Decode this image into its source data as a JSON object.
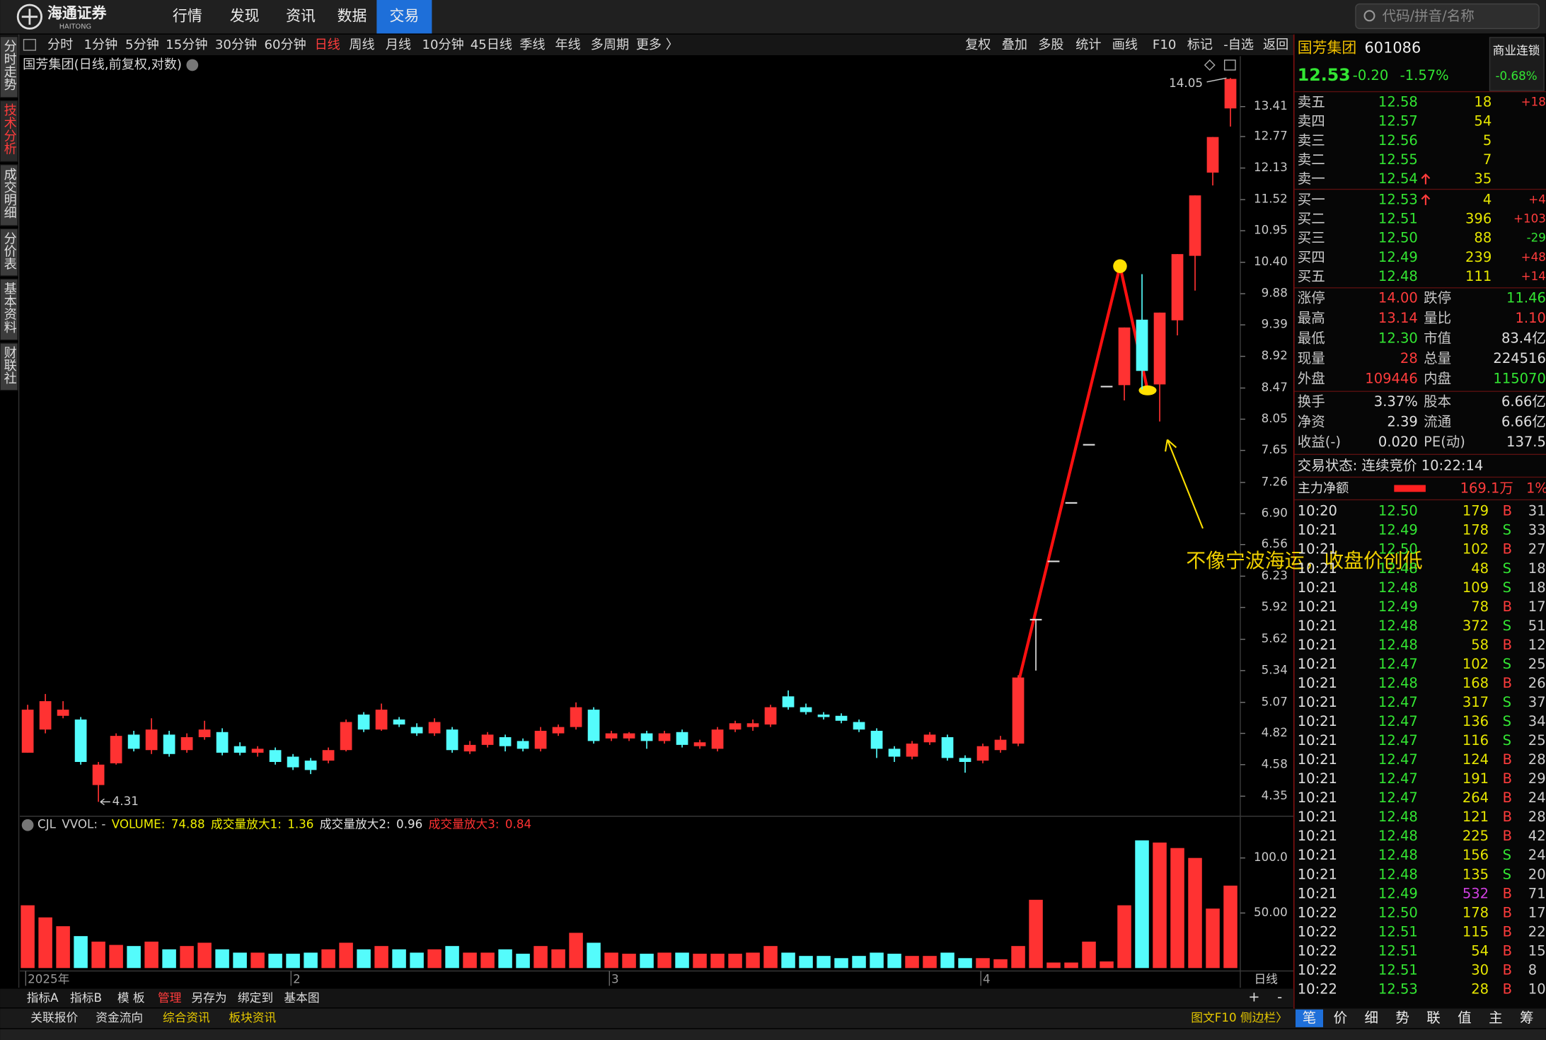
{
  "nav": {
    "logo": "海通证券",
    "logo_sub": "HAITONG",
    "menu": [
      "行情",
      "发现",
      "资讯",
      "数据",
      "交易"
    ],
    "active": 4,
    "search": "代码/拼音/名称"
  },
  "period_bar": {
    "items": [
      "分时",
      "1分钟",
      "5分钟",
      "15分钟",
      "30分钟",
      "60分钟",
      "日线",
      "周线",
      "月线",
      "10分钟",
      "45日线",
      "季线",
      "年线",
      "多周期",
      "更多 〉"
    ],
    "active": 6,
    "tools": [
      "复权",
      "叠加",
      "多股",
      "统计",
      "画线",
      "F10",
      "标记",
      "-自选",
      "返回"
    ]
  },
  "side_tabs": {
    "items": [
      "分时走势",
      "技术分析",
      "成交明细",
      "分价表",
      "基本资料",
      "财联社"
    ],
    "active": 1
  },
  "chart_data": {
    "type": "candlestick",
    "title": "国芳集团(日线,前复权,对数)",
    "log_scale": true,
    "categories": [
      "2025年",
      null,
      null,
      null,
      null,
      null,
      null,
      null,
      null,
      null,
      null,
      null,
      null,
      null,
      null,
      "2",
      null,
      null,
      null,
      null,
      null,
      null,
      null,
      null,
      null,
      null,
      null,
      null,
      null,
      null,
      null,
      null,
      null,
      "3",
      null,
      null,
      null,
      null,
      null,
      null,
      null,
      null,
      null,
      null,
      null,
      null,
      null,
      null,
      null,
      null,
      null,
      null,
      null,
      null,
      "4",
      null,
      null,
      null,
      null,
      null,
      null,
      null,
      null,
      null,
      null,
      null,
      null,
      null,
      null
    ],
    "open": [
      4.67,
      4.85,
      4.96,
      4.93,
      4.43,
      4.59,
      4.81,
      4.69,
      4.81,
      4.69,
      4.79,
      4.83,
      4.72,
      4.67,
      4.69,
      4.64,
      4.61,
      4.61,
      4.69,
      4.97,
      4.85,
      4.93,
      4.87,
      4.82,
      4.85,
      4.68,
      4.73,
      4.79,
      4.76,
      4.7,
      4.82,
      4.87,
      5.01,
      4.78,
      4.78,
      4.82,
      4.76,
      4.83,
      4.72,
      4.7,
      4.85,
      4.87,
      4.89,
      5.12,
      5.03,
      4.97,
      4.96,
      4.91,
      4.84,
      4.7,
      4.64,
      4.75,
      4.79,
      4.63,
      4.61,
      4.69,
      4.74,
      5.81,
      6.39,
      7.03,
      7.73,
      8.5,
      8.51,
      9.47,
      8.52,
      9.46,
      10.51,
      12.04,
      13.37
    ],
    "high": [
      5.05,
      5.14,
      5.08,
      4.95,
      4.6,
      4.82,
      4.84,
      4.94,
      4.84,
      4.82,
      4.92,
      4.86,
      4.75,
      4.72,
      4.71,
      4.66,
      4.63,
      4.71,
      4.93,
      4.99,
      5.06,
      4.95,
      4.9,
      4.94,
      4.87,
      4.76,
      4.83,
      4.81,
      4.78,
      4.87,
      4.89,
      5.07,
      5.03,
      4.84,
      4.83,
      4.84,
      4.84,
      4.85,
      4.77,
      4.87,
      4.92,
      4.93,
      5.05,
      5.17,
      5.06,
      4.99,
      4.98,
      4.93,
      4.86,
      4.72,
      4.76,
      4.83,
      4.81,
      4.65,
      4.74,
      4.8,
      5.3,
      5.81,
      6.39,
      7.03,
      7.73,
      8.5,
      9.35,
      10.2,
      9.58,
      10.54,
      11.6,
      12.76,
      14.05
    ],
    "low": [
      4.67,
      4.82,
      4.94,
      4.58,
      4.31,
      4.58,
      4.68,
      4.66,
      4.64,
      4.67,
      4.77,
      4.65,
      4.65,
      4.64,
      4.58,
      4.54,
      4.51,
      4.59,
      4.68,
      4.83,
      4.84,
      4.87,
      4.8,
      4.8,
      4.67,
      4.66,
      4.71,
      4.68,
      4.68,
      4.68,
      4.8,
      4.85,
      4.74,
      4.76,
      4.76,
      4.7,
      4.74,
      4.71,
      4.7,
      4.68,
      4.83,
      4.84,
      4.87,
      5.01,
      4.97,
      4.93,
      4.9,
      4.83,
      4.63,
      4.6,
      4.62,
      4.73,
      4.61,
      4.52,
      4.59,
      4.67,
      4.72,
      5.34,
      6.39,
      7.03,
      7.73,
      8.5,
      8.3,
      8.45,
      8.02,
      9.23,
      9.93,
      11.79,
      12.98
    ],
    "close": [
      5.01,
      5.08,
      5.01,
      4.6,
      4.58,
      4.8,
      4.7,
      4.85,
      4.66,
      4.79,
      4.85,
      4.67,
      4.67,
      4.7,
      4.6,
      4.56,
      4.54,
      4.69,
      4.91,
      4.85,
      5.01,
      4.89,
      4.82,
      4.91,
      4.69,
      4.73,
      4.81,
      4.72,
      4.7,
      4.84,
      4.87,
      5.03,
      4.76,
      4.82,
      4.82,
      4.76,
      4.82,
      4.73,
      4.75,
      4.85,
      4.9,
      4.9,
      5.03,
      5.03,
      4.99,
      4.95,
      4.92,
      4.85,
      4.7,
      4.64,
      4.74,
      4.81,
      4.63,
      4.6,
      4.72,
      4.77,
      5.28,
      5.81,
      6.39,
      7.03,
      7.73,
      8.5,
      9.35,
      8.71,
      9.58,
      10.54,
      11.6,
      12.76,
      14.03
    ],
    "up_color": "#ff3232",
    "down_color": "#54fcfc",
    "flat_color": "#e0e0e0",
    "ylim": [
      4.21,
      14.56
    ],
    "yticks": [
      4.35,
      4.58,
      4.82,
      5.07,
      5.34,
      5.62,
      5.92,
      6.23,
      6.56,
      {
        "value": 6.9,
        "label": "6.90"
      },
      7.26,
      7.65,
      8.05,
      8.47,
      8.92,
      9.39,
      9.88,
      {
        "value": 10.4,
        "label": "10.40"
      },
      10.95,
      11.52,
      12.13,
      12.77,
      13.41
    ],
    "volume": [
      57,
      46,
      38,
      29,
      24,
      21,
      20,
      24,
      17,
      20,
      23,
      17,
      14,
      14,
      13,
      13,
      14,
      17,
      23,
      17,
      20,
      17,
      14,
      17,
      20,
      14,
      14,
      17,
      13,
      20,
      17,
      32,
      23,
      14,
      13,
      13,
      14,
      14,
      13,
      13,
      13,
      14,
      20,
      14,
      11,
      11,
      9,
      11,
      14,
      13,
      11,
      11,
      14,
      9,
      9,
      8,
      20,
      62,
      5,
      5,
      24,
      6,
      57,
      116,
      114,
      109,
      100,
      54,
      74.88
    ],
    "vlim": [
      0,
      120
    ],
    "vticks": [
      {
        "value": 50,
        "label": "50.00"
      },
      {
        "value": 100,
        "label": "100.0"
      }
    ],
    "indicator_title": "CJL",
    "indicator_sub": "VVOL: -",
    "volume_label": "VOLUME:",
    "volume_label_color": "#f0f000",
    "indicators": [
      {
        "name": "成交量放大1:",
        "value": 1.36,
        "color": "#f0f000"
      },
      {
        "name": "成交量放大2:",
        "value": 0.96,
        "color": "#e0e0e0"
      },
      {
        "name": "成交量放大3:",
        "value": 0.84,
        "color": "#ff3232"
      }
    ],
    "period_label": "日线",
    "annotation": "不像宁波海运，收盘价创低"
  },
  "quote": {
    "name": "国芳集团",
    "code": "601086",
    "price": "12.53",
    "change": "-0.20",
    "pct": "-1.57%",
    "sector": "商业连锁",
    "sector_pct": "-0.68%",
    "asks": [
      {
        "label": "卖五",
        "price": "12.58",
        "vol": "18",
        "chg": "+18",
        "chg_color": "#ff3c3c"
      },
      {
        "label": "卖四",
        "price": "12.57",
        "vol": "54"
      },
      {
        "label": "卖三",
        "price": "12.56",
        "vol": "5"
      },
      {
        "label": "卖二",
        "price": "12.55",
        "vol": "7"
      },
      {
        "label": "卖一",
        "price": "12.54",
        "vol": "35",
        "arrow": true
      }
    ],
    "bids": [
      {
        "label": "买一",
        "price": "12.53",
        "vol": "4",
        "chg": "+4",
        "chg_color": "#ff3c3c",
        "arrow": true
      },
      {
        "label": "买二",
        "price": "12.51",
        "vol": "396",
        "chg": "+103",
        "chg_color": "#ff3c3c"
      },
      {
        "label": "买三",
        "price": "12.50",
        "vol": "88",
        "chg": "-29",
        "chg_color": "#33e633"
      },
      {
        "label": "买四",
        "price": "12.49",
        "vol": "239",
        "chg": "+48",
        "chg_color": "#ff3c3c"
      },
      {
        "label": "买五",
        "price": "12.48",
        "vol": "111",
        "chg": "+14",
        "chg_color": "#ff3c3c"
      }
    ],
    "stats": [
      {
        "l1": "涨停",
        "v1": "14.00",
        "c1": "#ff3c3c",
        "l2": "跌停",
        "v2": "11.46",
        "c2": "#33e633"
      },
      {
        "l1": "最高",
        "v1": "13.14",
        "c1": "#ff3c3c",
        "l2": "量比",
        "v2": "1.10",
        "c2": "#ff3c3c"
      },
      {
        "l1": "最低",
        "v1": "12.30",
        "c1": "#33e633",
        "l2": "市值",
        "v2": "83.4亿",
        "c2": "#e0e0e0"
      },
      {
        "l1": "现量",
        "v1": "28",
        "c1": "#ff3c3c",
        "l2": "总量",
        "v2": "224516",
        "c2": "#e0e0e0"
      },
      {
        "l1": "外盘",
        "v1": "109446",
        "c1": "#ff3c3c",
        "l2": "内盘",
        "v2": "115070",
        "c2": "#33e633"
      }
    ],
    "stats2": [
      {
        "l1": "换手",
        "v1": "3.37%",
        "l2": "股本",
        "v2": "6.66亿"
      },
      {
        "l1": "净资",
        "v1": "2.39",
        "l2": "流通",
        "v2": "6.66亿"
      },
      {
        "l1": "收益(-)",
        "v1": "0.020",
        "l2": "PE(动)",
        "v2": "137.5"
      }
    ],
    "status": "交易状态: 连续竞价 10:22:14",
    "flow_label": "主力净额",
    "flow_value": "169.1万",
    "flow_pct": "1%",
    "ticks": [
      [
        "10:20",
        "12.50",
        "179",
        "B",
        "31"
      ],
      [
        "10:21",
        "12.49",
        "178",
        "S",
        "33"
      ],
      [
        "10:21",
        "12.50",
        "102",
        "B",
        "27"
      ],
      [
        "10:21",
        "12.48",
        "48",
        "S",
        "18"
      ],
      [
        "10:21",
        "12.48",
        "109",
        "S",
        "18"
      ],
      [
        "10:21",
        "12.49",
        "78",
        "B",
        "17"
      ],
      [
        "10:21",
        "12.48",
        "372",
        "S",
        "51"
      ],
      [
        "10:21",
        "12.48",
        "58",
        "B",
        "12"
      ],
      [
        "10:21",
        "12.47",
        "102",
        "S",
        "25"
      ],
      [
        "10:21",
        "12.48",
        "168",
        "B",
        "26"
      ],
      [
        "10:21",
        "12.47",
        "317",
        "S",
        "37"
      ],
      [
        "10:21",
        "12.47",
        "136",
        "S",
        "34"
      ],
      [
        "10:21",
        "12.47",
        "116",
        "S",
        "25"
      ],
      [
        "10:21",
        "12.47",
        "124",
        "B",
        "28"
      ],
      [
        "10:21",
        "12.47",
        "191",
        "B",
        "29"
      ],
      [
        "10:21",
        "12.47",
        "264",
        "B",
        "24"
      ],
      [
        "10:21",
        "12.48",
        "121",
        "B",
        "28"
      ],
      [
        "10:21",
        "12.48",
        "225",
        "B",
        "42"
      ],
      [
        "10:21",
        "12.48",
        "156",
        "S",
        "24"
      ],
      [
        "10:21",
        "12.48",
        "135",
        "S",
        "20"
      ],
      [
        "10:21",
        "12.49",
        "532",
        "B",
        "71"
      ],
      [
        "10:22",
        "12.50",
        "178",
        "B",
        "17"
      ],
      [
        "10:22",
        "12.51",
        "115",
        "B",
        "22"
      ],
      [
        "10:22",
        "12.51",
        "54",
        "B",
        "15"
      ],
      [
        "10:22",
        "12.51",
        "30",
        "B",
        "8"
      ],
      [
        "10:22",
        "12.53",
        "28",
        "B",
        "10"
      ]
    ],
    "side_colors": {
      "B": "#ff3c3c",
      "S": "#33e633"
    },
    "large_rows": [
      20
    ],
    "large_color": "#d040e0"
  },
  "bottom_bar": {
    "items": [
      "指标A",
      "指标B",
      "模 板",
      "管理",
      "另存为",
      "绑定到",
      "基本图"
    ],
    "active": 3,
    "zoom": [
      "+",
      "-"
    ]
  },
  "bottom_bar2": {
    "items": [
      "关联报价",
      "资金流向",
      "综合资讯",
      "板块资讯"
    ],
    "highlight": [
      2,
      3
    ],
    "right": "图文F10 侧边栏〉",
    "tabs": [
      "笔",
      "价",
      "细",
      "势",
      "联",
      "值",
      "主",
      "筹"
    ],
    "active_tab": 0
  }
}
